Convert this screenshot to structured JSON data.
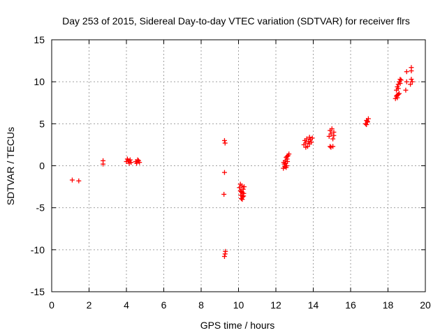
{
  "chart_data": {
    "type": "scatter",
    "title": "Day 253 of 2015, Sidereal Day-to-day VTEC variation (SDTVAR) for receiver flrs",
    "xlabel": "GPS time / hours",
    "ylabel": "SDTVAR / TECUs",
    "xlim": [
      0,
      20
    ],
    "ylim": [
      -15,
      15
    ],
    "xticks": [
      0,
      2,
      4,
      6,
      8,
      10,
      12,
      14,
      16,
      18,
      20
    ],
    "yticks": [
      -15,
      -10,
      -5,
      0,
      5,
      10,
      15
    ],
    "grid": true,
    "marker": "+",
    "color": "#ff0000",
    "series": [
      {
        "name": "SDTVAR",
        "points": [
          [
            1.1,
            -1.7
          ],
          [
            1.45,
            -1.8
          ],
          [
            2.75,
            0.2
          ],
          [
            2.75,
            0.6
          ],
          [
            4.0,
            0.5
          ],
          [
            4.05,
            0.8
          ],
          [
            4.1,
            0.6
          ],
          [
            4.15,
            0.3
          ],
          [
            4.2,
            0.7
          ],
          [
            4.25,
            0.4
          ],
          [
            4.5,
            0.5
          ],
          [
            4.55,
            0.3
          ],
          [
            4.6,
            0.7
          ],
          [
            4.65,
            0.6
          ],
          [
            4.7,
            0.4
          ],
          [
            9.25,
            3.0
          ],
          [
            9.28,
            2.7
          ],
          [
            9.25,
            -0.8
          ],
          [
            9.22,
            -3.4
          ],
          [
            9.3,
            -10.2
          ],
          [
            9.28,
            -10.5
          ],
          [
            9.25,
            -10.8
          ],
          [
            10.05,
            -2.6
          ],
          [
            10.1,
            -3.0
          ],
          [
            10.12,
            -3.5
          ],
          [
            10.15,
            -3.9
          ],
          [
            10.18,
            -2.4
          ],
          [
            10.2,
            -3.2
          ],
          [
            10.22,
            -3.7
          ],
          [
            10.25,
            -2.8
          ],
          [
            10.28,
            -3.3
          ],
          [
            10.3,
            -2.5
          ],
          [
            10.1,
            -2.2
          ],
          [
            10.2,
            -4.0
          ],
          [
            10.27,
            -3.6
          ],
          [
            10.15,
            -3.1
          ],
          [
            12.4,
            -0.3
          ],
          [
            12.45,
            0.2
          ],
          [
            12.48,
            -0.1
          ],
          [
            12.5,
            0.6
          ],
          [
            12.52,
            0.3
          ],
          [
            12.55,
            1.0
          ],
          [
            12.58,
            0.0
          ],
          [
            12.6,
            0.8
          ],
          [
            12.62,
            0.5
          ],
          [
            12.65,
            1.2
          ],
          [
            12.7,
            1.4
          ],
          [
            12.42,
            0.4
          ],
          [
            12.55,
            -0.2
          ],
          [
            12.6,
            1.1
          ],
          [
            13.5,
            2.5
          ],
          [
            13.55,
            3.0
          ],
          [
            13.6,
            2.7
          ],
          [
            13.65,
            3.2
          ],
          [
            13.7,
            2.3
          ],
          [
            13.75,
            2.9
          ],
          [
            13.8,
            2.6
          ],
          [
            13.85,
            3.1
          ],
          [
            13.9,
            2.8
          ],
          [
            13.95,
            3.3
          ],
          [
            13.6,
            2.2
          ],
          [
            13.8,
            3.4
          ],
          [
            14.85,
            3.5
          ],
          [
            14.9,
            4.2
          ],
          [
            14.95,
            3.8
          ],
          [
            15.0,
            4.4
          ],
          [
            15.05,
            3.2
          ],
          [
            15.1,
            4.0
          ],
          [
            14.9,
            2.3
          ],
          [
            14.95,
            2.2
          ],
          [
            15.05,
            2.3
          ],
          [
            15.1,
            3.6
          ],
          [
            16.8,
            5.0
          ],
          [
            16.85,
            5.4
          ],
          [
            16.9,
            5.2
          ],
          [
            16.95,
            5.6
          ],
          [
            16.85,
            4.9
          ],
          [
            16.9,
            5.3
          ],
          [
            18.4,
            8.0
          ],
          [
            18.45,
            8.3
          ],
          [
            18.5,
            8.1
          ],
          [
            18.55,
            8.5
          ],
          [
            18.6,
            8.6
          ],
          [
            18.45,
            9.0
          ],
          [
            18.5,
            9.4
          ],
          [
            18.55,
            9.7
          ],
          [
            18.6,
            10.0
          ],
          [
            18.65,
            10.3
          ],
          [
            18.7,
            10.2
          ],
          [
            18.55,
            9.2
          ],
          [
            18.65,
            9.8
          ],
          [
            18.5,
            8.4
          ],
          [
            18.95,
            9.0
          ],
          [
            19.0,
            10.0
          ],
          [
            19.0,
            11.2
          ],
          [
            19.25,
            11.3
          ],
          [
            19.25,
            11.7
          ],
          [
            19.2,
            9.7
          ],
          [
            19.25,
            10.3
          ],
          [
            19.3,
            10.0
          ]
        ]
      }
    ]
  }
}
